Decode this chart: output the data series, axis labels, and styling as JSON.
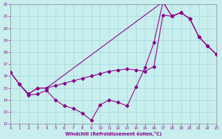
{
  "xlabel": "Windchill (Refroidissement éolien,°C)",
  "xlim": [
    0,
    23
  ],
  "ylim": [
    12,
    22
  ],
  "xticks": [
    0,
    1,
    2,
    3,
    4,
    5,
    6,
    7,
    8,
    9,
    10,
    11,
    12,
    13,
    14,
    15,
    16,
    17,
    18,
    19,
    20,
    21,
    22,
    23
  ],
  "yticks": [
    12,
    13,
    14,
    15,
    16,
    17,
    18,
    19,
    20,
    21,
    22
  ],
  "bg_color": "#c8eeee",
  "line_color": "#8b008b",
  "grid_color": "#a0d8d8",
  "curve1_x": [
    0,
    1,
    2,
    3,
    4,
    5,
    6,
    7,
    8,
    9,
    10,
    11,
    12,
    13,
    14,
    15,
    16,
    17,
    18,
    19,
    20,
    21,
    22,
    23
  ],
  "curve1_y": [
    16.3,
    15.3,
    14.4,
    14.5,
    14.8,
    14.0,
    13.5,
    13.3,
    12.9,
    12.3,
    13.6,
    14.0,
    13.8,
    13.5,
    15.1,
    16.7,
    18.8,
    22.2,
    21.0,
    21.3,
    20.8,
    19.3,
    18.5,
    17.8
  ],
  "curve2_x": [
    0,
    1,
    2,
    3,
    4,
    5,
    6,
    7,
    8,
    9,
    10,
    11,
    12,
    13,
    14,
    15,
    16,
    17,
    18,
    19,
    20,
    21,
    22,
    23
  ],
  "curve2_y": [
    16.3,
    15.3,
    14.5,
    15.0,
    15.0,
    15.2,
    15.4,
    15.6,
    15.8,
    16.0,
    16.2,
    16.4,
    16.5,
    16.6,
    16.5,
    16.4,
    16.8,
    21.1,
    21.0,
    21.3,
    20.8,
    19.3,
    18.5,
    17.8
  ],
  "curve3_x": [
    0,
    1,
    2,
    3,
    4,
    17,
    18,
    19,
    20,
    21,
    22,
    23
  ],
  "curve3_y": [
    16.3,
    15.3,
    14.5,
    15.0,
    15.0,
    22.2,
    21.0,
    21.3,
    20.8,
    19.3,
    18.5,
    17.8
  ]
}
